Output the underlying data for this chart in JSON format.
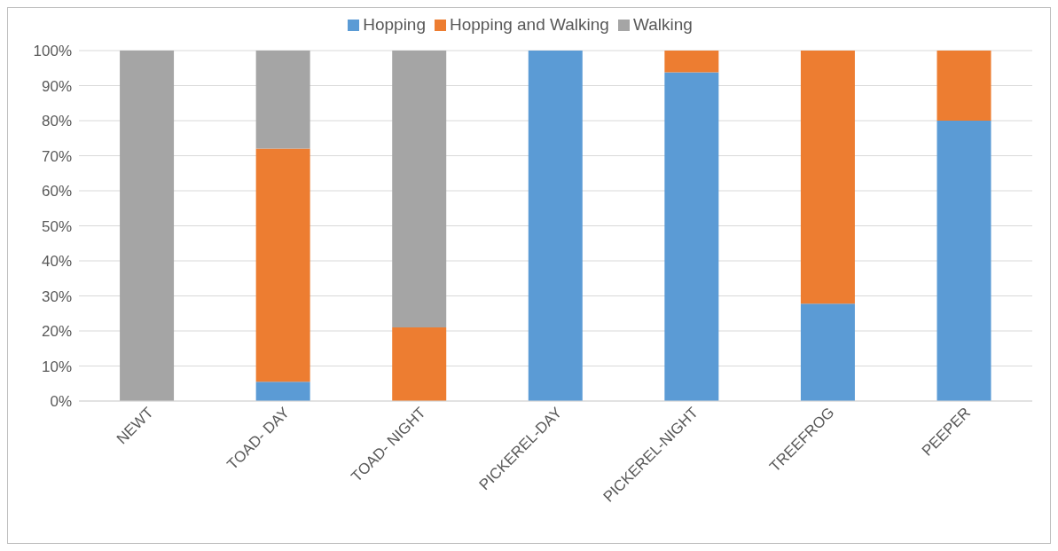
{
  "chart_data": {
    "type": "bar",
    "stacked": true,
    "categories": [
      "NEWT",
      "TOAD- DAY",
      "TOAD- NIGHT",
      "PICKEREL-DAY",
      "PICKEREL-NIGHT",
      "TREEFROG",
      "PEEPER"
    ],
    "series": [
      {
        "name": "Hopping",
        "color": "#5b9bd5",
        "values": [
          0,
          5.5,
          0,
          100,
          93.8,
          27.8,
          80
        ]
      },
      {
        "name": "Hopping and Walking",
        "color": "#ed7d31",
        "values": [
          0,
          66.5,
          21,
          0,
          6.2,
          72.2,
          20
        ]
      },
      {
        "name": "Walking",
        "color": "#a5a5a5",
        "values": [
          100,
          28,
          79,
          0,
          0,
          0,
          0
        ]
      }
    ],
    "ylim": [
      0,
      100
    ],
    "yticks": [
      {
        "value": 0,
        "label": "0%"
      },
      {
        "value": 10,
        "label": "10%"
      },
      {
        "value": 20,
        "label": "20%"
      },
      {
        "value": 30,
        "label": "30%"
      },
      {
        "value": 40,
        "label": "40%"
      },
      {
        "value": 50,
        "label": "50%"
      },
      {
        "value": 60,
        "label": "60%"
      },
      {
        "value": 70,
        "label": "70%"
      },
      {
        "value": 80,
        "label": "80%"
      },
      {
        "value": 90,
        "label": "90%"
      },
      {
        "value": 100,
        "label": "100%"
      }
    ],
    "grid": "y",
    "legend": "top"
  }
}
